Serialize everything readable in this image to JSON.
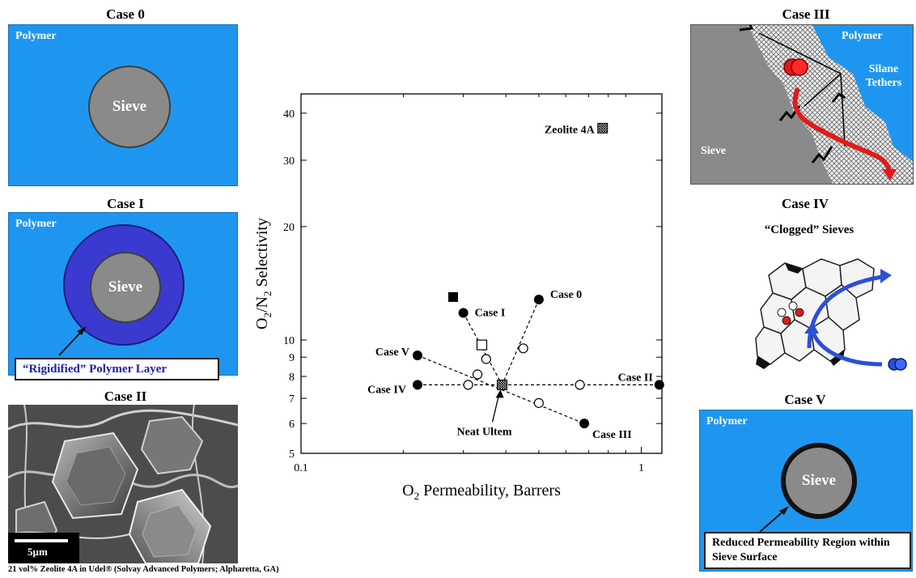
{
  "left": {
    "case0": {
      "title": "Case 0",
      "polymer_label": "Polymer",
      "sieve_label": "Sieve"
    },
    "case1": {
      "title": "Case I",
      "polymer_label": "Polymer",
      "sieve_label": "Sieve",
      "callout": "“Rigidified” Polymer Layer"
    },
    "case2": {
      "title": "Case II",
      "scale_bar_label": "5µm",
      "caption": "21 vol% Zeolite 4A in Udel® (Solvay Advanced Polymers; Alpharetta, GA)"
    }
  },
  "right": {
    "case3": {
      "title": "Case III",
      "polymer_label": "Polymer",
      "sieve_label": "Sieve",
      "tether_label": "Silane Tethers"
    },
    "case4": {
      "title": "Case IV",
      "subtitle": "“Clogged” Sieves"
    },
    "case5": {
      "title": "Case V",
      "polymer_label": "Polymer",
      "sieve_label": "Sieve",
      "callout": "Reduced Permeability Region within Sieve Surface"
    }
  },
  "chart_data": {
    "type": "scatter",
    "xlabel": "O2 Permeability, Barrers",
    "ylabel": "O2/N2 Selectivity",
    "xscale": "log",
    "yscale": "log",
    "xlim": [
      0.1,
      1.15
    ],
    "ylim": [
      5,
      45
    ],
    "xticks": [
      0.1,
      1
    ],
    "xtick_labels": [
      "0.1",
      "1"
    ],
    "yticks": [
      5,
      6,
      7,
      8,
      9,
      10,
      20,
      30,
      40
    ],
    "ytick_labels": [
      "5",
      "6",
      "7",
      "8",
      "9",
      "10",
      "20",
      "30",
      "40"
    ],
    "points": [
      {
        "x": 0.39,
        "y": 7.6,
        "marker": "hatched-square",
        "label": "Neat Ultem"
      },
      {
        "x": 0.77,
        "y": 36.5,
        "marker": "hatched-square",
        "label": "Zeolite 4A"
      },
      {
        "x": 0.5,
        "y": 12.8,
        "marker": "filled-circle",
        "label": "Case 0"
      },
      {
        "x": 0.45,
        "y": 9.5,
        "marker": "open-circle"
      },
      {
        "x": 0.3,
        "y": 11.8,
        "marker": "filled-circle",
        "label": "Case I"
      },
      {
        "x": 0.28,
        "y": 13.0,
        "marker": "filled-square"
      },
      {
        "x": 0.34,
        "y": 9.7,
        "marker": "open-square"
      },
      {
        "x": 1.13,
        "y": 7.6,
        "marker": "filled-circle",
        "label": "Case II"
      },
      {
        "x": 0.66,
        "y": 7.6,
        "marker": "open-circle"
      },
      {
        "x": 0.68,
        "y": 6.0,
        "marker": "filled-circle",
        "label": "Case III"
      },
      {
        "x": 0.5,
        "y": 6.8,
        "marker": "open-circle"
      },
      {
        "x": 0.22,
        "y": 7.6,
        "marker": "filled-circle",
        "label": "Case IV"
      },
      {
        "x": 0.31,
        "y": 7.6,
        "marker": "open-circle"
      },
      {
        "x": 0.22,
        "y": 9.1,
        "marker": "filled-circle",
        "label": "Case V"
      },
      {
        "x": 0.33,
        "y": 8.1,
        "marker": "open-circle"
      },
      {
        "x": 0.35,
        "y": 8.9,
        "marker": "open-circle"
      }
    ],
    "dashed_lines": [
      {
        "from": [
          0.5,
          12.8
        ],
        "to": [
          0.39,
          7.6
        ]
      },
      {
        "from": [
          0.3,
          11.8
        ],
        "to": [
          0.39,
          7.6
        ]
      },
      {
        "from": [
          0.22,
          7.6
        ],
        "to": [
          1.13,
          7.6
        ]
      },
      {
        "from": [
          0.22,
          9.1
        ],
        "to": [
          0.68,
          6.0
        ]
      }
    ]
  }
}
